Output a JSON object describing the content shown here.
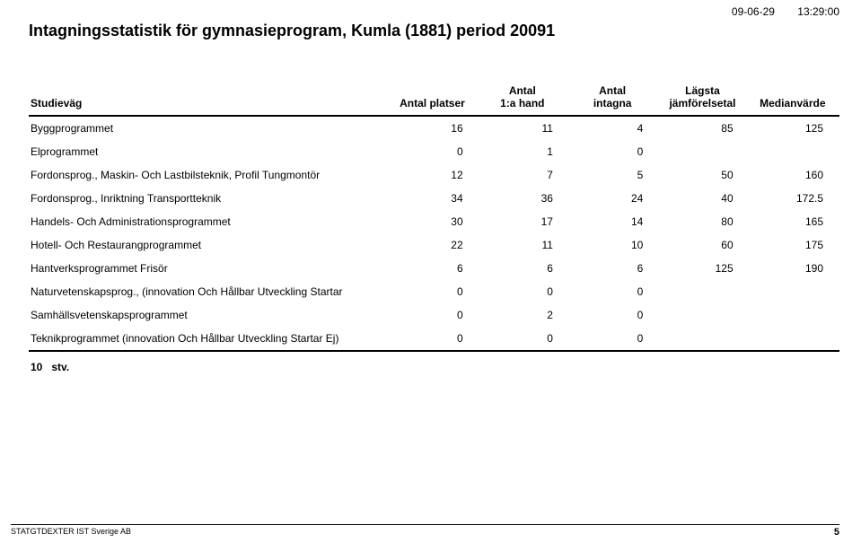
{
  "timestamp": {
    "date": "09-06-29",
    "time": "13:29:00"
  },
  "title": "Intagningsstatistik för gymnasieprogram,   Kumla (1881) period 20091",
  "columns": {
    "c0": "Studieväg",
    "c1": "Antal platser",
    "c2_l1": "Antal",
    "c2_l2": "1:a hand",
    "c3_l1": "Antal",
    "c3_l2": "intagna",
    "c4_l1": "Lägsta",
    "c4_l2": "jämförelsetal",
    "c5": "Medianvärde"
  },
  "rows": [
    {
      "name": "Byggprogrammet",
      "platser": "16",
      "hand": "11",
      "intagna": "4",
      "lagsta": "85",
      "median": "125"
    },
    {
      "name": "Elprogrammet",
      "platser": "0",
      "hand": "1",
      "intagna": "0",
      "lagsta": "",
      "median": ""
    },
    {
      "name": "Fordonsprog., Maskin- Och Lastbilsteknik, Profil Tungmontör",
      "platser": "12",
      "hand": "7",
      "intagna": "5",
      "lagsta": "50",
      "median": "160"
    },
    {
      "name": "Fordonsprog., Inriktning Transportteknik",
      "platser": "34",
      "hand": "36",
      "intagna": "24",
      "lagsta": "40",
      "median": "172.5"
    },
    {
      "name": "Handels- Och Administrationsprogrammet",
      "platser": "30",
      "hand": "17",
      "intagna": "14",
      "lagsta": "80",
      "median": "165"
    },
    {
      "name": "Hotell- Och Restaurangprogrammet",
      "platser": "22",
      "hand": "11",
      "intagna": "10",
      "lagsta": "60",
      "median": "175"
    },
    {
      "name": "Hantverksprogrammet Frisör",
      "platser": "6",
      "hand": "6",
      "intagna": "6",
      "lagsta": "125",
      "median": "190"
    },
    {
      "name": "Naturvetenskapsprog., (innovation Och Hållbar Utveckling Startar",
      "platser": "0",
      "hand": "0",
      "intagna": "0",
      "lagsta": "",
      "median": ""
    },
    {
      "name": "Samhällsvetenskapsprogrammet",
      "platser": "0",
      "hand": "2",
      "intagna": "0",
      "lagsta": "",
      "median": ""
    },
    {
      "name": "Teknikprogrammet (innovation Och Hållbar Utveckling Startar Ej)",
      "platser": "0",
      "hand": "0",
      "intagna": "0",
      "lagsta": "",
      "median": ""
    }
  ],
  "summary": {
    "count": "10",
    "unit": "stv."
  },
  "footer": {
    "org": "STATGTDEXTER  IST Sverige AB",
    "page": "5"
  }
}
